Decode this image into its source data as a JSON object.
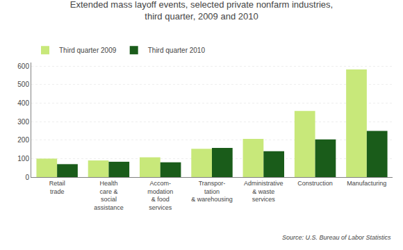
{
  "chart_data": {
    "type": "bar",
    "title": "Extended mass layoff events, selected private nonfarm industries,\nthird quarter, 2009 and 2010",
    "categories": [
      "Retail\ntrade",
      "Health\ncare &\nsocial\nassistance",
      "Accom-\nmodation\n& food\nservices",
      "Transpor-\ntation\n& warehousing",
      "Administrative\n& waste\nservices",
      "Construction",
      "Manufacturing"
    ],
    "series": [
      {
        "name": "Third quarter 2009",
        "color": "#c8e87a",
        "values": [
          100,
          90,
          107,
          153,
          207,
          358,
          582
        ]
      },
      {
        "name": "Third quarter 2010",
        "color": "#1a5c1a",
        "values": [
          70,
          83,
          80,
          158,
          140,
          204,
          250
        ]
      }
    ],
    "ylim": [
      0,
      620
    ],
    "yticks": [
      0,
      100,
      200,
      300,
      400,
      500,
      600
    ],
    "grid": true,
    "legend": "upper left",
    "annotations": [
      "Source: U.S. Bureau of Labor Statistics"
    ]
  }
}
